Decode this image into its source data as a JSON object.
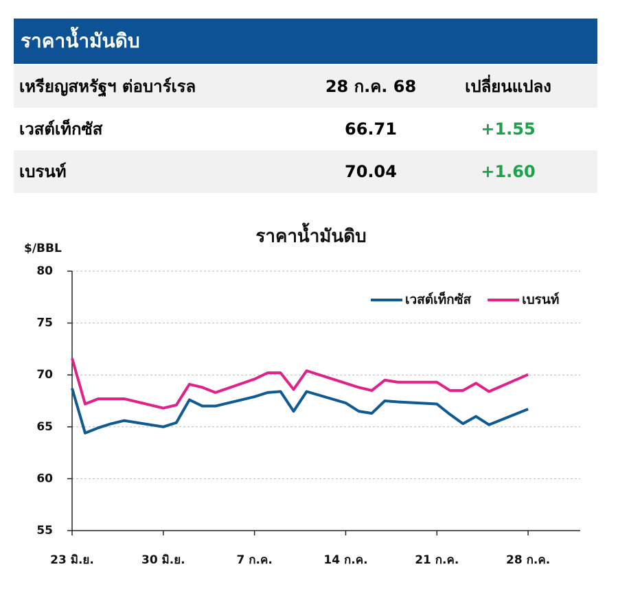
{
  "header": {
    "title": "ราคาน้ำมันดิบ"
  },
  "table": {
    "columns": [
      "เหรียญสหรัฐฯ ต่อบาร์เรล",
      "28 ก.ค. 68",
      "เปลี่ยนแปลง"
    ],
    "rows": [
      [
        "เวสต์เท็กซัส",
        "66.71",
        "+1.55"
      ],
      [
        "เบรนท์",
        "70.04",
        "+1.60"
      ]
    ]
  },
  "chart_data": {
    "type": "line",
    "title": "ราคาน้ำมันดิบ",
    "y_label": "$/BBL",
    "x": [
      0,
      1,
      2,
      3,
      4,
      7,
      8,
      9,
      10,
      11,
      14,
      15,
      16,
      17,
      18,
      21,
      22,
      23,
      24,
      25,
      28,
      29,
      30,
      31,
      32,
      35
    ],
    "xlim": [
      0,
      39
    ],
    "xticks": [
      {
        "value": 0,
        "label": "23 มิ.ย."
      },
      {
        "value": 7,
        "label": "30 มิ.ย."
      },
      {
        "value": 14,
        "label": "7 ก.ค."
      },
      {
        "value": 21,
        "label": "14 ก.ค."
      },
      {
        "value": 28,
        "label": "21 ก.ค."
      },
      {
        "value": 35,
        "label": "28 ก.ค."
      }
    ],
    "ylim": [
      55,
      80
    ],
    "yticks": [
      80,
      75,
      70,
      65,
      60,
      55
    ],
    "grid": true,
    "legend": "top-right",
    "series": [
      {
        "name": "เวสต์เท็กซัส",
        "color": "#0f5a92",
        "values": [
          68.7,
          64.4,
          64.9,
          65.3,
          65.6,
          65.0,
          65.4,
          67.6,
          67.0,
          67.0,
          67.9,
          68.3,
          68.4,
          66.5,
          68.4,
          67.3,
          66.5,
          66.3,
          67.5,
          67.4,
          67.2,
          66.2,
          65.3,
          66.0,
          65.2,
          66.71
        ]
      },
      {
        "name": "เบรนท์",
        "color": "#e0218a",
        "values": [
          71.6,
          67.2,
          67.7,
          67.7,
          67.7,
          66.8,
          67.1,
          69.1,
          68.8,
          68.3,
          69.6,
          70.2,
          70.2,
          68.6,
          70.4,
          69.2,
          68.8,
          68.5,
          69.5,
          69.3,
          69.3,
          68.5,
          68.5,
          69.2,
          68.4,
          70.04
        ]
      }
    ]
  }
}
